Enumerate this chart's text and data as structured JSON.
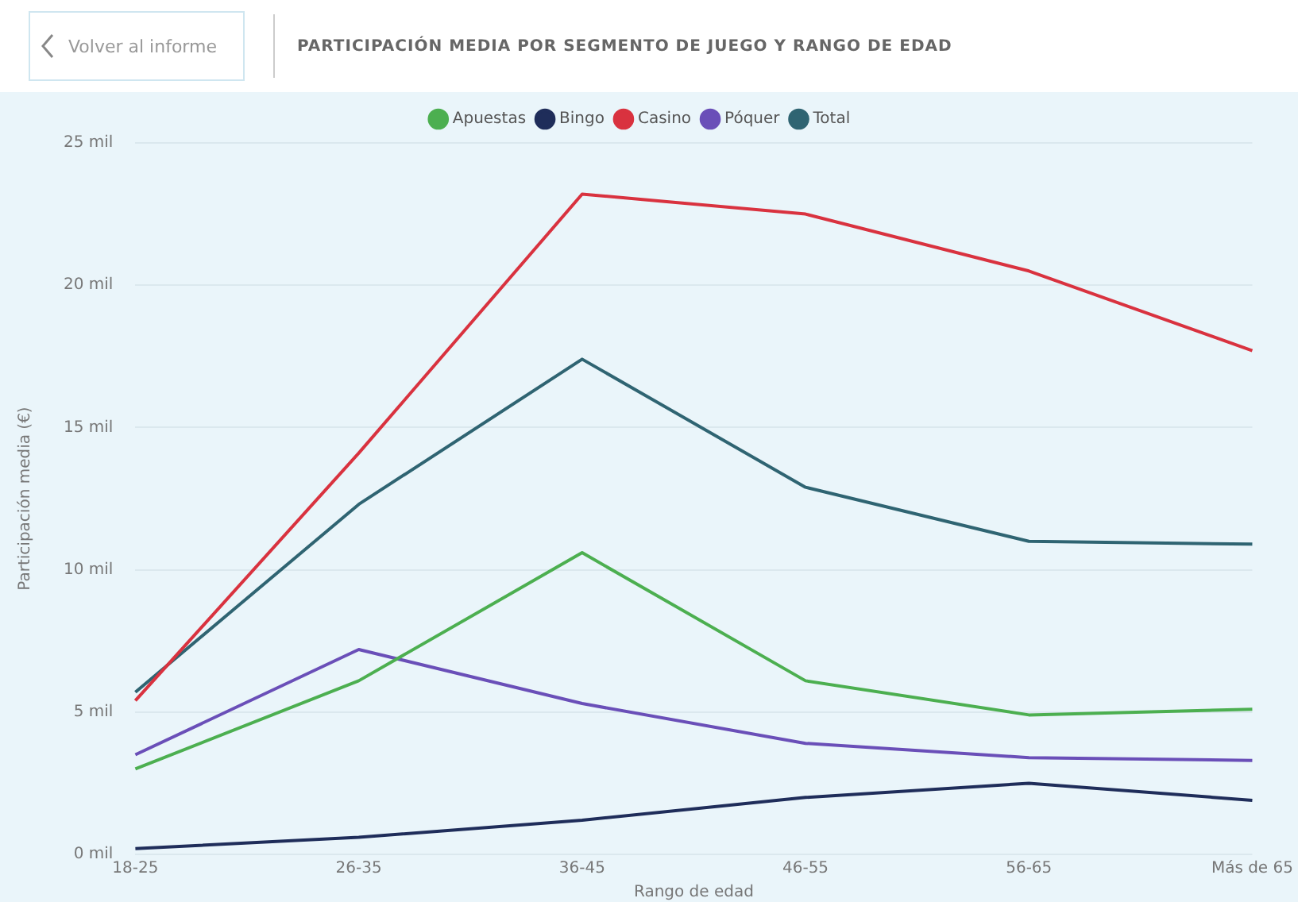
{
  "chart_data": {
    "type": "line",
    "title": "PARTICIPACIÓN MEDIA POR SEGMENTO DE JUEGO Y RANGO DE EDAD",
    "annotations": [
      "Volver al informe"
    ],
    "xlabel": "Rango de edad",
    "ylabel": "Participación media (€)",
    "categories": [
      "18-25",
      "26-35",
      "36-45",
      "46-55",
      "56-65",
      "Más de 65"
    ],
    "series": [
      {
        "name": "Apuestas",
        "color": "#4caf50",
        "values": [
          3.0,
          6.1,
          10.6,
          6.1,
          4.9,
          5.1
        ]
      },
      {
        "name": "Bingo",
        "color": "#1f2d5a",
        "values": [
          0.2,
          0.6,
          1.2,
          2.0,
          2.5,
          1.9
        ]
      },
      {
        "name": "Casino",
        "color": "#d9323f",
        "values": [
          5.4,
          14.1,
          23.2,
          22.5,
          20.5,
          17.7
        ]
      },
      {
        "name": "Póquer",
        "color": "#6a4fb8",
        "values": [
          3.5,
          7.2,
          5.3,
          3.9,
          3.4,
          3.3
        ]
      },
      {
        "name": "Total",
        "color": "#2f6472",
        "values": [
          5.7,
          12.3,
          17.4,
          12.9,
          11.0,
          10.9
        ]
      }
    ],
    "ylim": [
      0,
      25
    ],
    "yticks": [
      {
        "value": 0,
        "label": "0 mil"
      },
      {
        "value": 5,
        "label": "5 mil"
      },
      {
        "value": 10,
        "label": "10 mil"
      },
      {
        "value": 15,
        "label": "15 mil"
      },
      {
        "value": 20,
        "label": "20 mil"
      },
      {
        "value": 25,
        "label": "25 mil"
      }
    ],
    "grid": "y",
    "legend": "top",
    "marker": "none",
    "line_style": "solid"
  }
}
